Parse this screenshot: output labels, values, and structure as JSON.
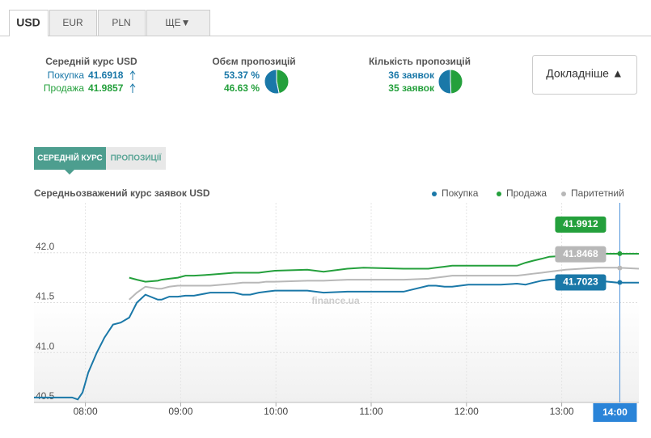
{
  "tabs": [
    "USD",
    "EUR",
    "PLN",
    "ЩЕ▼"
  ],
  "average": {
    "title": "Середній курс USD",
    "rows": [
      {
        "label": "Покупка",
        "value": "41.6918"
      },
      {
        "label": "Продажа",
        "value": "41.9857"
      }
    ]
  },
  "volume": {
    "title": "Обєм пропозицій",
    "rows": [
      {
        "value": 53.37,
        "label": "53.37 %"
      },
      {
        "value": 46.63,
        "label": "46.63 %"
      }
    ]
  },
  "count": {
    "title": "Кількість пропозицій",
    "rows": [
      {
        "value": 36,
        "label": "36 заявок"
      },
      {
        "value": 35,
        "label": "35 заявок"
      }
    ]
  },
  "details_button": "Докладніше ▲",
  "chart_tabs": [
    "СЕРЕДНІЙ КУРС",
    "ПРОПОЗИЦІЇ"
  ],
  "chart_data": {
    "type": "line",
    "title": "Середньозважений курс заявок USD",
    "watermark": "finance.ua",
    "x": [
      7.46,
      7.86,
      7.92,
      7.97,
      8.03,
      8.12,
      8.2,
      8.29,
      8.37,
      8.46,
      8.54,
      8.63,
      8.76,
      8.8,
      8.88,
      8.97,
      9.05,
      9.14,
      9.31,
      9.56,
      9.65,
      9.73,
      9.82,
      9.9,
      9.99,
      10.33,
      10.5,
      10.75,
      10.92,
      11.34,
      11.6,
      11.68,
      11.77,
      11.85,
      12.02,
      12.36,
      12.53,
      12.62,
      12.7,
      12.79,
      12.87,
      13.04,
      13.38,
      13.59,
      13.81
    ],
    "series": [
      {
        "name": "Покупка",
        "color": "#1a78a8",
        "hover_value": 41.7023,
        "values": [
          40.55,
          40.55,
          40.53,
          40.6,
          40.8,
          41.0,
          41.15,
          41.28,
          41.3,
          41.35,
          41.5,
          41.58,
          41.53,
          41.53,
          41.56,
          41.56,
          41.57,
          41.57,
          41.6,
          41.6,
          41.58,
          41.58,
          41.6,
          41.61,
          41.62,
          41.62,
          41.6,
          41.61,
          41.61,
          41.61,
          41.67,
          41.67,
          41.66,
          41.66,
          41.68,
          41.68,
          41.69,
          41.68,
          41.7,
          41.72,
          41.73,
          41.74,
          41.72,
          41.7,
          41.7
        ]
      },
      {
        "name": "Продажа",
        "color": "#24a03c",
        "hover_value": 41.9912,
        "values": [
          null,
          null,
          null,
          null,
          null,
          null,
          null,
          null,
          null,
          41.75,
          41.73,
          41.71,
          41.72,
          41.73,
          41.74,
          41.75,
          41.77,
          41.77,
          41.78,
          41.8,
          41.8,
          41.8,
          41.8,
          41.81,
          41.82,
          41.83,
          41.81,
          41.84,
          41.85,
          41.84,
          41.84,
          41.85,
          41.86,
          41.87,
          41.87,
          41.87,
          41.87,
          41.9,
          41.92,
          41.94,
          41.96,
          41.97,
          41.99,
          41.99,
          41.99
        ]
      },
      {
        "name": "Паритетний",
        "color": "#b8b8b8",
        "hover_value": 41.8468,
        "values": [
          null,
          null,
          null,
          null,
          null,
          null,
          null,
          null,
          null,
          41.53,
          41.6,
          41.66,
          41.64,
          41.64,
          41.66,
          41.67,
          41.67,
          41.67,
          41.67,
          41.69,
          41.7,
          41.7,
          41.7,
          41.71,
          41.71,
          41.72,
          41.72,
          41.73,
          41.73,
          41.73,
          41.74,
          41.75,
          41.76,
          41.77,
          41.77,
          41.77,
          41.77,
          41.78,
          41.79,
          41.8,
          41.81,
          41.83,
          41.85,
          41.85,
          41.84
        ]
      }
    ],
    "xlim": [
      7.46,
      13.81
    ],
    "ylim": [
      40.5,
      42.5
    ],
    "xticks": [
      {
        "value": 8,
        "label": "08:00"
      },
      {
        "value": 9,
        "label": "09:00"
      },
      {
        "value": 10,
        "label": "10:00"
      },
      {
        "value": 11,
        "label": "11:00"
      },
      {
        "value": 12,
        "label": "12:00"
      },
      {
        "value": 13,
        "label": "13:00"
      }
    ],
    "yticks": [
      {
        "value": 40.5,
        "label": "40.5"
      },
      {
        "value": 41,
        "label": "41.0"
      },
      {
        "value": 41.5,
        "label": "41.5"
      },
      {
        "value": 42,
        "label": "42.0"
      }
    ],
    "crosshair": {
      "x": 13.61,
      "label": "14:00"
    },
    "grid": true
  }
}
